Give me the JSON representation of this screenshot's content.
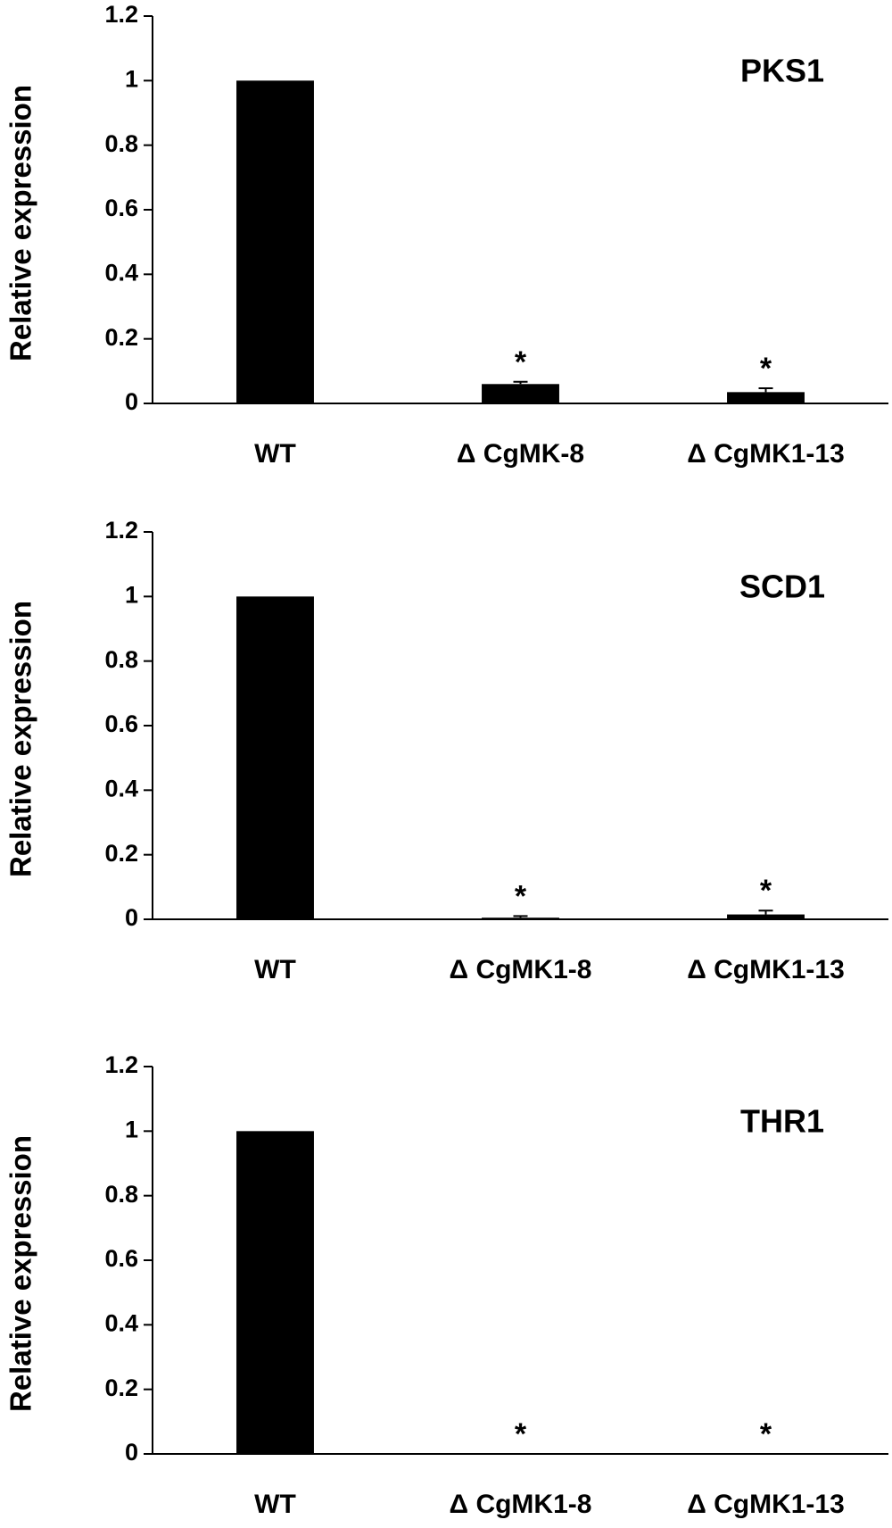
{
  "chart_data": [
    {
      "type": "bar",
      "title": "PKS1",
      "ylabel": "Relative expression",
      "categories": [
        "WT",
        "Δ CgMK-8",
        "Δ CgMK1-13"
      ],
      "values": [
        1,
        0.06,
        0.035
      ],
      "errors": [
        null,
        0.007,
        0.012
      ],
      "annotations": [
        null,
        "*",
        "*"
      ],
      "color": "#000000",
      "ylim": [
        0,
        1.2
      ],
      "yticks": [
        0,
        0.2,
        0.4,
        0.6,
        0.8,
        1,
        1.2
      ]
    },
    {
      "type": "bar",
      "title": "SCD1",
      "ylabel": "Relative expression",
      "categories": [
        "WT",
        "Δ CgMK1-8",
        "Δ CgMK1-13"
      ],
      "values": [
        1,
        0.005,
        0.015
      ],
      "errors": [
        null,
        0.005,
        0.012
      ],
      "annotations": [
        null,
        "*",
        "*"
      ],
      "color": "#000000",
      "ylim": [
        0,
        1.2
      ],
      "yticks": [
        0,
        0.2,
        0.4,
        0.6,
        0.8,
        1,
        1.2
      ]
    },
    {
      "type": "bar",
      "title": "THR1",
      "ylabel": "Relative expression",
      "categories": [
        "WT",
        "Δ CgMK1-8",
        "Δ CgMK1-13"
      ],
      "values": [
        1,
        0,
        0
      ],
      "errors": [
        null,
        null,
        null
      ],
      "annotations": [
        null,
        "*",
        "*"
      ],
      "color": "#000000",
      "ylim": [
        0,
        1.2
      ],
      "yticks": [
        0,
        0.2,
        0.4,
        0.6,
        0.8,
        1,
        1.2
      ]
    }
  ]
}
